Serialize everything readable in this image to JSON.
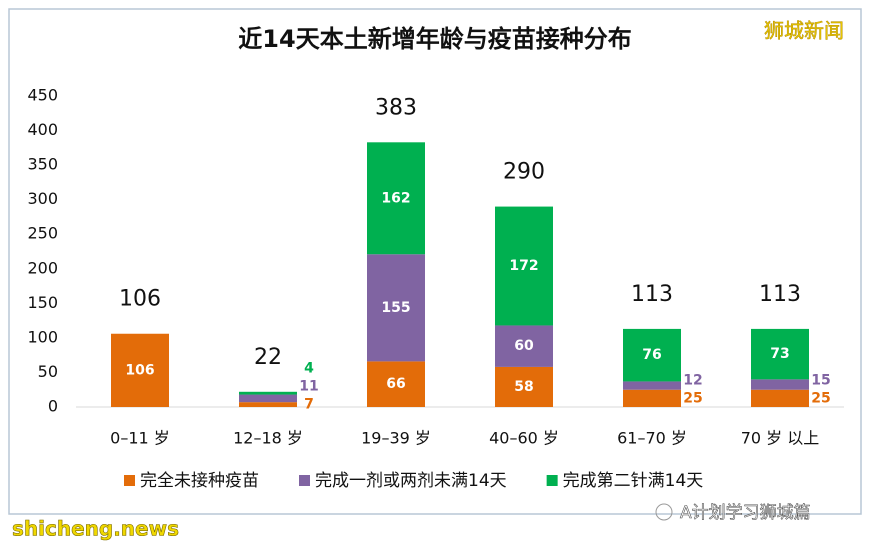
{
  "chart_data": {
    "type": "stacked_bar",
    "title": "近14天本土新增年龄与疫苗接种分布",
    "categories": [
      "0–11 岁",
      "12–18 岁",
      "19–39 岁",
      "40–60 岁",
      "61–70 岁",
      "70 岁 以上"
    ],
    "series": [
      {
        "name": "完全未接种疫苗",
        "color": "#e36c09",
        "values": [
          106,
          7,
          66,
          58,
          25,
          25
        ]
      },
      {
        "name": "完成一剂或两剂未满14天",
        "color": "#8064a2",
        "values": [
          null,
          11,
          155,
          60,
          12,
          15
        ]
      },
      {
        "name": "完成第二针满14天",
        "color": "#00b050",
        "values": [
          null,
          4,
          162,
          172,
          76,
          73
        ]
      }
    ],
    "totals": [
      106,
      22,
      383,
      290,
      113,
      113
    ],
    "ylim": [
      0,
      450
    ],
    "yticks": [
      0,
      50,
      100,
      150,
      200,
      250,
      300,
      350,
      400,
      450
    ],
    "grid": false,
    "watermarks": [
      "狮城新闻",
      "shicheng.news",
      "A计划学习狮城篇"
    ]
  }
}
